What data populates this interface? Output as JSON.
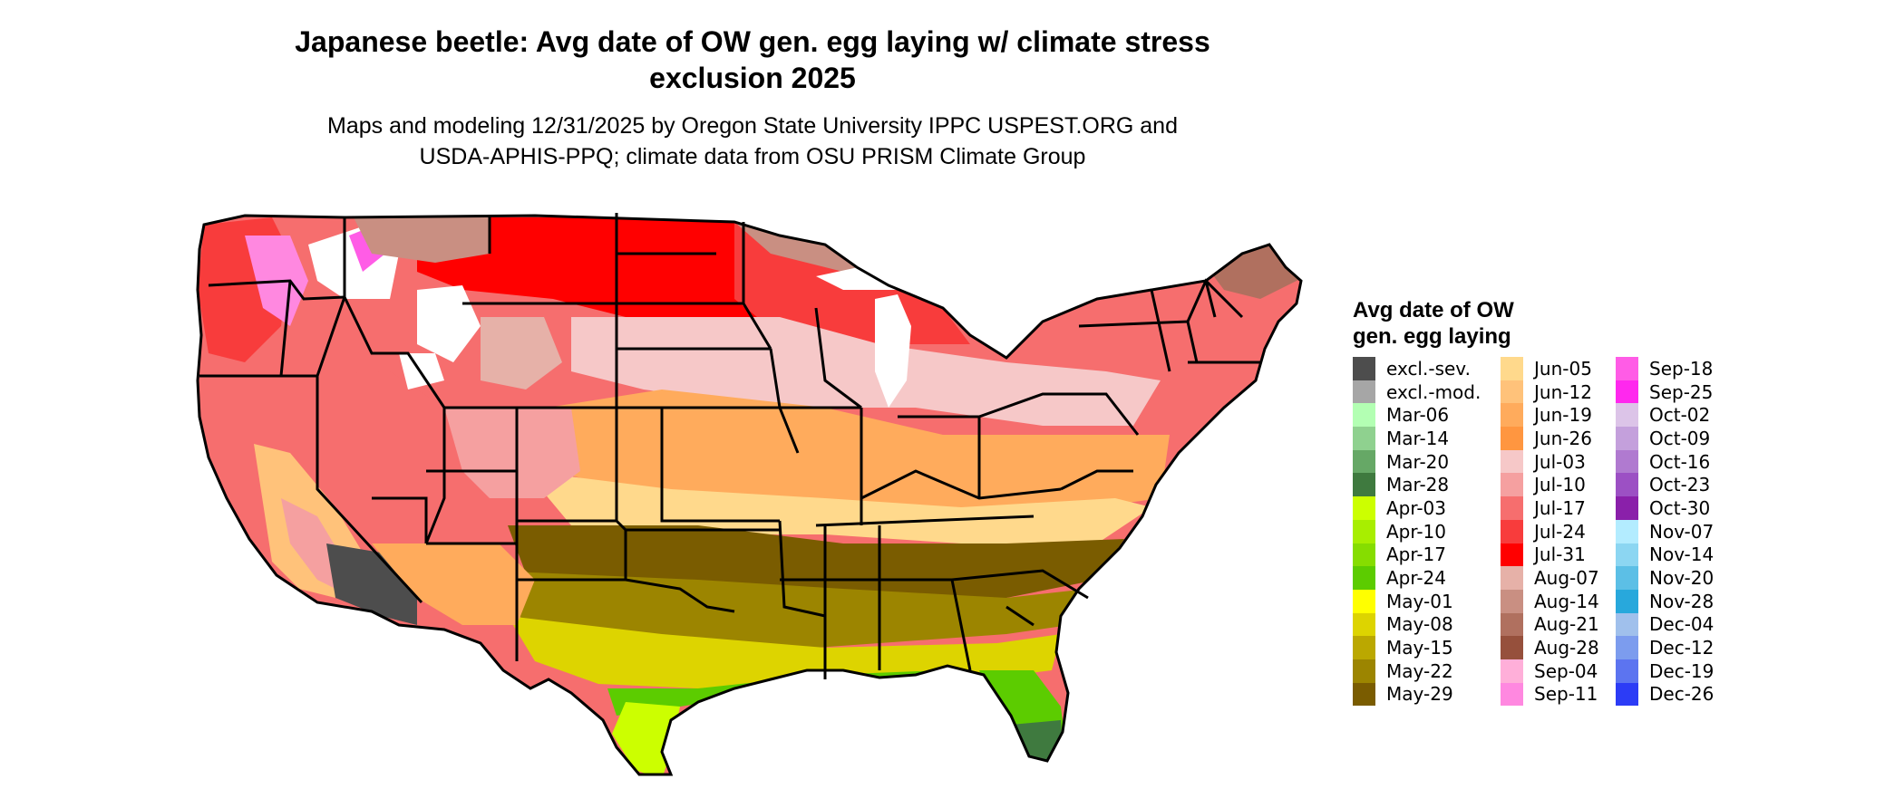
{
  "title": {
    "line1": "Japanese beetle: Avg date of OW gen. egg laying w/ climate stress",
    "line2": "exclusion 2025"
  },
  "subtitle": {
    "line1": "Maps and modeling 12/31/2025 by Oregon State University IPPC USPEST.ORG and",
    "line2": "USDA-APHIS-PPQ; climate data from OSU PRISM Climate Group"
  },
  "legend": {
    "title_line1": "Avg date of OW",
    "title_line2": "gen. egg laying",
    "columns": [
      [
        {
          "label": "excl.-sev.",
          "color": "#4d4d4d"
        },
        {
          "label": "excl.-mod.",
          "color": "#a6a6a6"
        },
        {
          "label": "Mar-06",
          "color": "#b3ffb3"
        },
        {
          "label": "Mar-14",
          "color": "#8fd18f"
        },
        {
          "label": "Mar-20",
          "color": "#66a866"
        },
        {
          "label": "Mar-28",
          "color": "#3f7a3f"
        },
        {
          "label": "Apr-03",
          "color": "#ccff00"
        },
        {
          "label": "Apr-10",
          "color": "#a8ee00"
        },
        {
          "label": "Apr-17",
          "color": "#86dd00"
        },
        {
          "label": "Apr-24",
          "color": "#5ccc00"
        },
        {
          "label": "May-01",
          "color": "#ffff00"
        },
        {
          "label": "May-08",
          "color": "#ddd400"
        },
        {
          "label": "May-15",
          "color": "#bba800"
        },
        {
          "label": "May-22",
          "color": "#9c8500"
        },
        {
          "label": "May-29",
          "color": "#7a5c00"
        }
      ],
      [
        {
          "label": "Jun-05",
          "color": "#ffd98c"
        },
        {
          "label": "Jun-12",
          "color": "#ffc27a"
        },
        {
          "label": "Jun-19",
          "color": "#ffab5c"
        },
        {
          "label": "Jun-26",
          "color": "#ff9640"
        },
        {
          "label": "Jul-03",
          "color": "#f6c8c8"
        },
        {
          "label": "Jul-10",
          "color": "#f5a0a0"
        },
        {
          "label": "Jul-17",
          "color": "#f66e6e"
        },
        {
          "label": "Jul-24",
          "color": "#f83c3c"
        },
        {
          "label": "Jul-31",
          "color": "#ff0000"
        },
        {
          "label": "Aug-07",
          "color": "#e6b1a8"
        },
        {
          "label": "Aug-14",
          "color": "#c98f82"
        },
        {
          "label": "Aug-21",
          "color": "#b0705f"
        },
        {
          "label": "Aug-28",
          "color": "#96503c"
        },
        {
          "label": "Sep-04",
          "color": "#ffafd9"
        },
        {
          "label": "Sep-11",
          "color": "#ff88e0"
        }
      ],
      [
        {
          "label": "Sep-18",
          "color": "#ff5ce6"
        },
        {
          "label": "Sep-25",
          "color": "#ff28ee"
        },
        {
          "label": "Oct-02",
          "color": "#dcc4e8"
        },
        {
          "label": "Oct-09",
          "color": "#c4a0dc"
        },
        {
          "label": "Oct-16",
          "color": "#b07ad0"
        },
        {
          "label": "Oct-23",
          "color": "#9c50c4"
        },
        {
          "label": "Oct-30",
          "color": "#8a20aa"
        },
        {
          "label": "Nov-07",
          "color": "#b3ecff"
        },
        {
          "label": "Nov-14",
          "color": "#8cd6f2"
        },
        {
          "label": "Nov-20",
          "color": "#5cbfe6"
        },
        {
          "label": "Nov-28",
          "color": "#28a8dc"
        },
        {
          "label": "Dec-04",
          "color": "#a0c0ec"
        },
        {
          "label": "Dec-12",
          "color": "#7c9cee"
        },
        {
          "label": "Dec-19",
          "color": "#5c74f0"
        },
        {
          "label": "Dec-26",
          "color": "#2c3cf6"
        }
      ]
    ]
  }
}
